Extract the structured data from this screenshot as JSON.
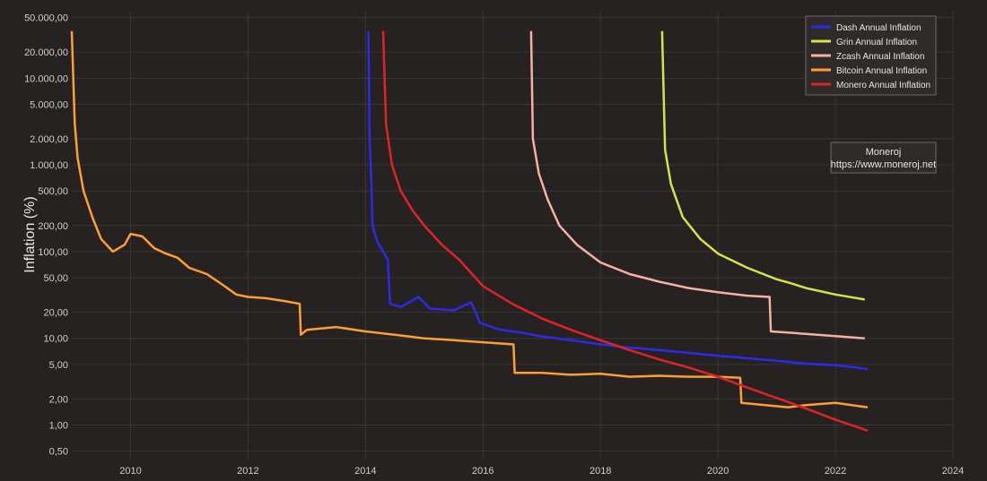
{
  "chart_data": {
    "type": "line",
    "title": "",
    "xlabel": "",
    "ylabel": "Inflation (%)",
    "y_scale": "log",
    "xlim": [
      2009.0,
      2024.0
    ],
    "ylim": [
      0.4,
      60000
    ],
    "grid": true,
    "legend_position": "top-right",
    "x_ticks": [
      2010,
      2012,
      2014,
      2016,
      2018,
      2020,
      2022,
      2024
    ],
    "x_tick_labels": [
      "2010",
      "2012",
      "2014",
      "2016",
      "2018",
      "2020",
      "2022",
      "2024"
    ],
    "y_ticks": [
      0.5,
      1,
      2,
      5,
      10,
      20,
      50,
      100,
      200,
      500,
      1000,
      2000,
      5000,
      10000,
      20000,
      50000
    ],
    "y_tick_labels": [
      "0,50",
      "1,00",
      "2,00",
      "5,00",
      "10,00",
      "20,00",
      "50,00",
      "100,00",
      "200,00",
      "500,00",
      "1.000,00",
      "2.000,00",
      "5.000,00",
      "10.000,00",
      "20.000,00",
      "50.000,00"
    ],
    "annotation": {
      "line1": "Moneroj",
      "line2": "https://www.moneroj.net"
    },
    "series": [
      {
        "name": "Dash Annual Inflation",
        "color": "#2b2bea",
        "points": [
          [
            2014.05,
            35000
          ],
          [
            2014.07,
            2000
          ],
          [
            2014.1,
            600
          ],
          [
            2014.12,
            200
          ],
          [
            2014.2,
            130
          ],
          [
            2014.3,
            100
          ],
          [
            2014.38,
            80
          ],
          [
            2014.42,
            25
          ],
          [
            2014.6,
            23
          ],
          [
            2014.9,
            30
          ],
          [
            2015.1,
            22
          ],
          [
            2015.5,
            21
          ],
          [
            2015.8,
            26
          ],
          [
            2015.95,
            15
          ],
          [
            2016.3,
            12.5
          ],
          [
            2016.7,
            11.5
          ],
          [
            2017.0,
            10.5
          ],
          [
            2017.5,
            9.5
          ],
          [
            2018.0,
            8.5
          ],
          [
            2018.5,
            7.8
          ],
          [
            2019.0,
            7.3
          ],
          [
            2019.5,
            6.8
          ],
          [
            2020.0,
            6.3
          ],
          [
            2020.5,
            5.9
          ],
          [
            2021.0,
            5.5
          ],
          [
            2021.5,
            5.1
          ],
          [
            2022.0,
            4.9
          ],
          [
            2022.35,
            4.6
          ],
          [
            2022.55,
            4.4
          ]
        ]
      },
      {
        "name": "Grin Annual Inflation",
        "color": "#d6e24a",
        "points": [
          [
            2019.05,
            35000
          ],
          [
            2019.1,
            1500
          ],
          [
            2019.2,
            600
          ],
          [
            2019.4,
            250
          ],
          [
            2019.7,
            140
          ],
          [
            2020.0,
            95
          ],
          [
            2020.5,
            65
          ],
          [
            2021.0,
            48
          ],
          [
            2021.2,
            44
          ],
          [
            2021.5,
            38
          ],
          [
            2022.0,
            32
          ],
          [
            2022.5,
            28
          ]
        ]
      },
      {
        "name": "Zcash Annual Inflation",
        "color": "#f7b0a2",
        "points": [
          [
            2016.82,
            35000
          ],
          [
            2016.85,
            2000
          ],
          [
            2016.95,
            800
          ],
          [
            2017.1,
            400
          ],
          [
            2017.3,
            200
          ],
          [
            2017.6,
            120
          ],
          [
            2018.0,
            75
          ],
          [
            2018.5,
            55
          ],
          [
            2019.0,
            45
          ],
          [
            2019.5,
            38
          ],
          [
            2020.0,
            34
          ],
          [
            2020.5,
            31
          ],
          [
            2020.88,
            30
          ],
          [
            2020.9,
            12
          ],
          [
            2021.3,
            11.5
          ],
          [
            2022.0,
            10.6
          ],
          [
            2022.5,
            10
          ]
        ]
      },
      {
        "name": "Bitcoin Annual Inflation",
        "color": "#ff9f33",
        "points": [
          [
            2009.0,
            35000
          ],
          [
            2009.05,
            3000
          ],
          [
            2009.1,
            1200
          ],
          [
            2009.2,
            500
          ],
          [
            2009.35,
            250
          ],
          [
            2009.5,
            140
          ],
          [
            2009.7,
            100
          ],
          [
            2009.9,
            120
          ],
          [
            2010.0,
            160
          ],
          [
            2010.2,
            150
          ],
          [
            2010.4,
            110
          ],
          [
            2010.6,
            95
          ],
          [
            2010.8,
            85
          ],
          [
            2011.0,
            65
          ],
          [
            2011.3,
            55
          ],
          [
            2011.6,
            40
          ],
          [
            2011.8,
            32
          ],
          [
            2012.0,
            30
          ],
          [
            2012.3,
            29
          ],
          [
            2012.6,
            27
          ],
          [
            2012.88,
            25
          ],
          [
            2012.9,
            11
          ],
          [
            2013.0,
            12.5
          ],
          [
            2013.5,
            13.5
          ],
          [
            2014.0,
            12
          ],
          [
            2014.5,
            11
          ],
          [
            2015.0,
            10
          ],
          [
            2015.5,
            9.5
          ],
          [
            2016.0,
            9
          ],
          [
            2016.52,
            8.5
          ],
          [
            2016.54,
            4
          ],
          [
            2017.0,
            4.0
          ],
          [
            2017.5,
            3.8
          ],
          [
            2018.0,
            3.9
          ],
          [
            2018.5,
            3.6
          ],
          [
            2019.0,
            3.7
          ],
          [
            2019.5,
            3.6
          ],
          [
            2020.0,
            3.6
          ],
          [
            2020.38,
            3.5
          ],
          [
            2020.4,
            1.8
          ],
          [
            2020.8,
            1.7
          ],
          [
            2021.2,
            1.6
          ],
          [
            2021.5,
            1.7
          ],
          [
            2022.0,
            1.8
          ],
          [
            2022.55,
            1.6
          ]
        ]
      },
      {
        "name": "Monero Annual Inflation",
        "color": "#e02424",
        "points": [
          [
            2014.3,
            35000
          ],
          [
            2014.35,
            3000
          ],
          [
            2014.45,
            1000
          ],
          [
            2014.6,
            500
          ],
          [
            2014.8,
            300
          ],
          [
            2015.0,
            200
          ],
          [
            2015.3,
            120
          ],
          [
            2015.6,
            80
          ],
          [
            2016.0,
            40
          ],
          [
            2016.5,
            25
          ],
          [
            2017.0,
            17
          ],
          [
            2017.5,
            12.5
          ],
          [
            2018.0,
            9.5
          ],
          [
            2018.5,
            7.3
          ],
          [
            2019.0,
            5.7
          ],
          [
            2019.5,
            4.6
          ],
          [
            2020.0,
            3.6
          ],
          [
            2020.5,
            2.7
          ],
          [
            2021.0,
            2.05
          ],
          [
            2021.5,
            1.55
          ],
          [
            2022.0,
            1.15
          ],
          [
            2022.55,
            0.86
          ]
        ]
      }
    ]
  }
}
